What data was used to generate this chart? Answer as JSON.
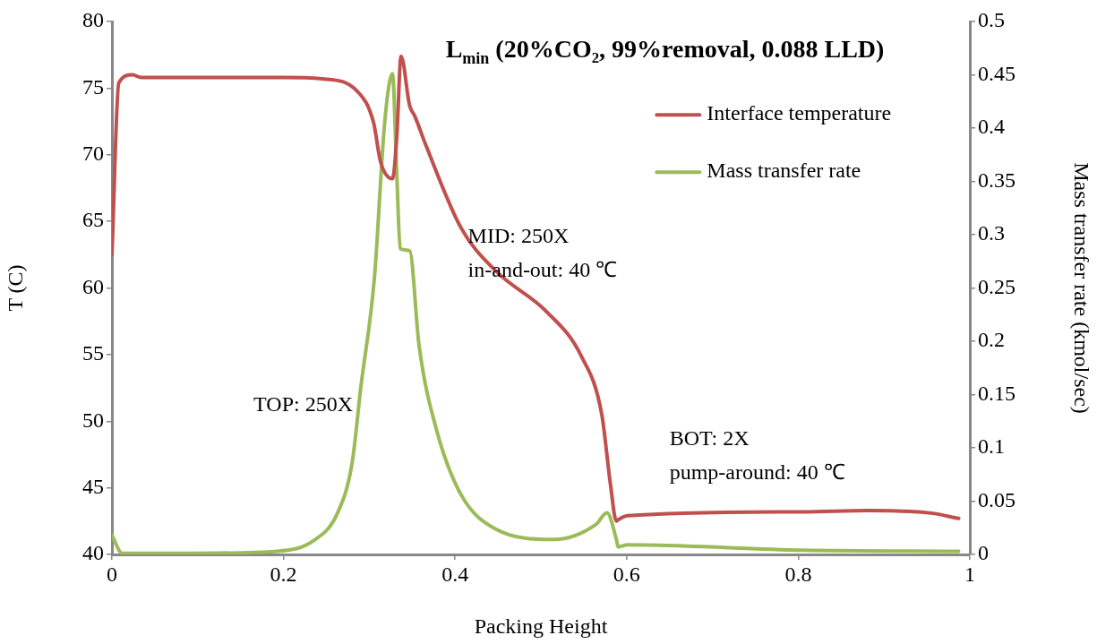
{
  "chart_data": {
    "type": "line",
    "title": "L$_{min}$ (20%CO₂, 99%removal, 0.088 LLD)",
    "xlabel": "Packing Height",
    "ylabel": "T (C)",
    "y2label": "Mass transfer rate (kmol/sec)",
    "series": [
      {
        "name": "Interface temperature",
        "color": "#c0504d",
        "x": [
          0,
          0.008,
          0.024,
          0.034,
          0.1,
          0.2,
          0.245,
          0.287,
          0.305,
          0.313,
          0.327,
          0.332,
          0.337,
          0.347,
          0.353,
          0.366,
          0.407,
          0.447,
          0.507,
          0.547,
          0.571,
          0.581,
          0.588,
          0.59,
          0.601,
          0.806,
          0.881,
          0.955,
          0.987
        ],
        "values": [
          62.5,
          75.4,
          76.0,
          75.8,
          75.8,
          75.8,
          75.7,
          74.7,
          72.4,
          69.5,
          68.2,
          71.3,
          77.4,
          73.7,
          72.9,
          70.7,
          64.5,
          61.3,
          58.2,
          54.9,
          50.5,
          45.3,
          42.5,
          42.6,
          42.9,
          43.2,
          43.3,
          43.1,
          42.7
        ]
      },
      {
        "name": "Mass transfer rate",
        "color": "#9bbb59",
        "axis": "y2",
        "x": [
          0,
          0.012,
          0.078,
          0.193,
          0.235,
          0.263,
          0.28,
          0.29,
          0.306,
          0.318,
          0.327,
          0.332,
          0.336,
          0.347,
          0.358,
          0.379,
          0.407,
          0.447,
          0.515,
          0.564,
          0.577,
          0.588,
          0.59,
          0.601,
          0.806,
          0.987
        ],
        "values": [
          0.018,
          0.001,
          0.001,
          0.003,
          0.013,
          0.039,
          0.086,
          0.156,
          0.26,
          0.406,
          0.451,
          0.357,
          0.287,
          0.285,
          0.196,
          0.115,
          0.056,
          0.024,
          0.014,
          0.028,
          0.039,
          0.014,
          0.007,
          0.009,
          0.004,
          0.003
        ]
      }
    ],
    "xlim": [
      0,
      1
    ],
    "xticks": [
      0,
      0.2,
      0.4,
      0.6,
      0.8,
      1
    ],
    "ylim": [
      40,
      80
    ],
    "yticks": [
      40,
      45,
      50,
      55,
      60,
      65,
      70,
      75,
      80
    ],
    "y2lim": [
      0,
      0.5
    ],
    "y2ticks": [
      0,
      0.05,
      0.1,
      0.15,
      0.2,
      0.25,
      0.3,
      0.35,
      0.4,
      0.45,
      0.5
    ],
    "annotations": [
      "TOP: 250X",
      "MID: 250X\nin-and-out: 40 ℃",
      "BOT: 2X\npump-around: 40 ℃"
    ],
    "legend": "top right",
    "grid": false,
    "marker": "none",
    "line_style": "solid"
  }
}
